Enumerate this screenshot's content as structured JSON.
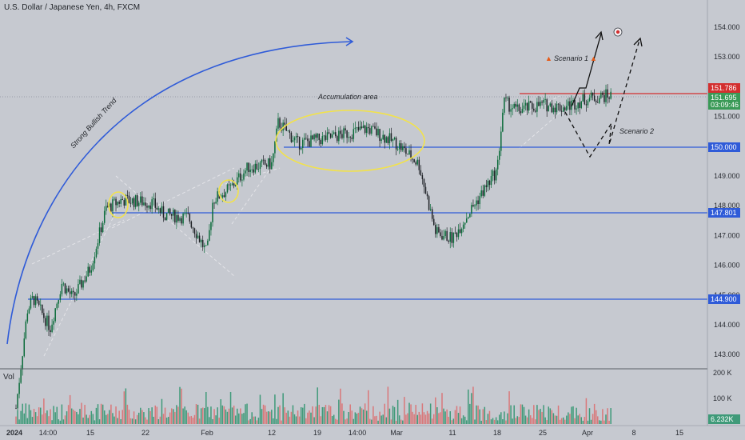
{
  "header": {
    "title": "U.S. Dollar / Japanese Yen, 4h, FXCM"
  },
  "volume_panel": {
    "label": "Vol",
    "ticks": [
      "200 K",
      "100 K"
    ],
    "current_value": "6.232K"
  },
  "colors": {
    "background": "#c6c9d0",
    "up": "#0b6b3a",
    "down": "#1f2227",
    "level_line": "#2f5bd8",
    "resistance_line": "#d32f2f",
    "ellipse": "#f2e24a",
    "trend_arc": "#2f5bd8",
    "volume_up": "#3f9a79",
    "volume_down": "#d9787a"
  },
  "price_tags": {
    "resistance": "151.786",
    "current_price": "151.695",
    "countdown": "03:09:46",
    "level_150": "150.000",
    "level_147801": "147.801",
    "level_1449": "144.900"
  },
  "annotations": {
    "trend": "Strong Bullish Trend",
    "accumulation": "Accumulation area",
    "scenario1": "Scenario 1",
    "scenario2": "Scenario 2"
  },
  "chart_data": {
    "type": "line",
    "title": "U.S. Dollar / Japanese Yen, 4h, FXCM",
    "xlabel": "",
    "ylabel": "",
    "y_ticks": [
      "154.000",
      "153.000",
      "152.000",
      "151.000",
      "150.000",
      "149.000",
      "148.000",
      "147.000",
      "146.000",
      "145.000",
      "144.000",
      "143.000"
    ],
    "x_ticks": [
      "2024",
      "14:00",
      "15",
      "22",
      "Feb",
      "12",
      "19",
      "14:00",
      "Mar",
      "11",
      "18",
      "25",
      "Apr",
      "8",
      "15"
    ],
    "ylim": [
      142.6,
      154.5
    ],
    "horizontal_levels": [
      151.786,
      150.0,
      147.801,
      144.9
    ],
    "price_path": [
      {
        "x": "2024-01-02",
        "y": 141.2
      },
      {
        "x": "2024-01-04",
        "y": 144.5
      },
      {
        "x": "2024-01-05",
        "y": 144.9
      },
      {
        "x": "2024-01-08",
        "y": 143.9
      },
      {
        "x": "2024-01-10",
        "y": 145.4
      },
      {
        "x": "2024-01-12",
        "y": 144.9
      },
      {
        "x": "2024-01-15",
        "y": 145.9
      },
      {
        "x": "2024-01-17",
        "y": 147.9
      },
      {
        "x": "2024-01-19",
        "y": 148.2
      },
      {
        "x": "2024-01-23",
        "y": 148.1
      },
      {
        "x": "2024-01-25",
        "y": 147.7
      },
      {
        "x": "2024-01-29",
        "y": 147.6
      },
      {
        "x": "2024-02-01",
        "y": 146.4
      },
      {
        "x": "2024-02-02",
        "y": 148.2
      },
      {
        "x": "2024-02-05",
        "y": 148.6
      },
      {
        "x": "2024-02-08",
        "y": 149.3
      },
      {
        "x": "2024-02-12",
        "y": 149.4
      },
      {
        "x": "2024-02-13",
        "y": 150.8
      },
      {
        "x": "2024-02-16",
        "y": 150.1
      },
      {
        "x": "2024-02-21",
        "y": 150.3
      },
      {
        "x": "2024-02-26",
        "y": 150.6
      },
      {
        "x": "2024-03-01",
        "y": 150.1
      },
      {
        "x": "2024-03-05",
        "y": 149.4
      },
      {
        "x": "2024-03-08",
        "y": 147.1
      },
      {
        "x": "2024-03-11",
        "y": 146.9
      },
      {
        "x": "2024-03-14",
        "y": 147.9
      },
      {
        "x": "2024-03-18",
        "y": 149.2
      },
      {
        "x": "2024-03-19",
        "y": 151.5
      },
      {
        "x": "2024-03-21",
        "y": 151.2
      },
      {
        "x": "2024-03-25",
        "y": 151.4
      },
      {
        "x": "2024-03-28",
        "y": 151.3
      },
      {
        "x": "2024-04-01",
        "y": 151.6
      },
      {
        "x": "2024-04-04",
        "y": 151.7
      }
    ]
  }
}
